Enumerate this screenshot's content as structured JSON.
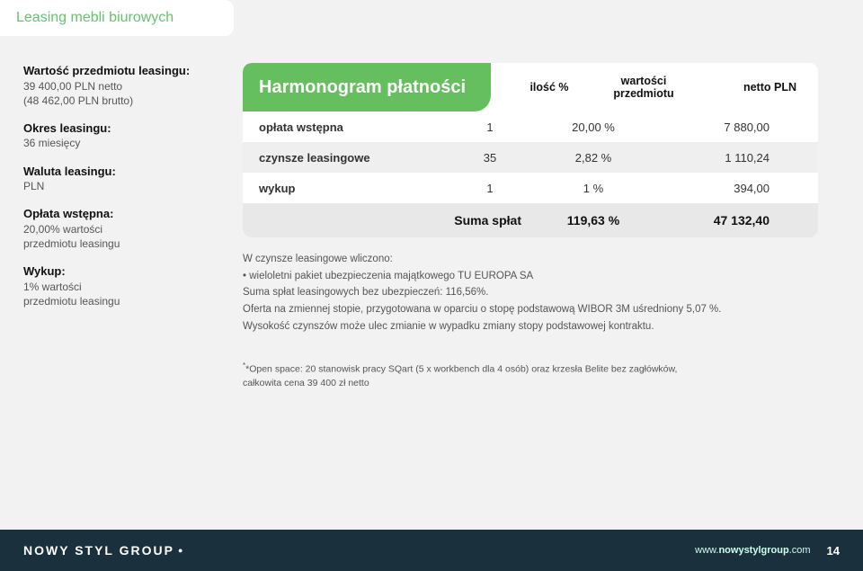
{
  "colors": {
    "page_bg": "#f2f2f2",
    "accent": "#66bf5e",
    "titlebar_text": "#66c36e",
    "footer_bg": "#1a303c",
    "row_alt": "#efefef",
    "sum_bg": "#e8e8e8",
    "text_primary": "#111111",
    "text_body": "#333333",
    "text_muted": "#555555"
  },
  "typography": {
    "title_fontsize": 16,
    "table_header_fontsize": 20,
    "column_header_fontsize": 12.5,
    "row_fontsize": 13,
    "sumrow_fontsize": 14,
    "sidebar_header_fontsize": 13,
    "sidebar_body_fontsize": 12,
    "notes_fontsize": 11.5,
    "footnote_fontsize": 10.5,
    "footer_fontsize": 12
  },
  "titlebar": {
    "text": "Leasing mebli biurowych"
  },
  "sidebar": {
    "wartosc": {
      "hdr": "Wartość przedmiotu leasingu:",
      "line1": "39 400,00 PLN netto",
      "line2": "(48 462,00 PLN brutto)"
    },
    "okres": {
      "hdr": "Okres leasingu:",
      "val": "36 miesięcy"
    },
    "waluta": {
      "hdr": "Waluta leasingu:",
      "val": "PLN"
    },
    "oplata": {
      "hdr": "Opłata wstępna:",
      "line1": "20,00% wartości",
      "line2": "przedmiotu leasingu"
    },
    "wykup": {
      "hdr": "Wykup:",
      "line1": "1% wartości",
      "line2": "przedmiotu leasingu"
    }
  },
  "table": {
    "header": "Harmonogram płatności",
    "columns": {
      "c1": "ilość %",
      "c2": "wartości przedmiotu",
      "c3": "netto PLN"
    },
    "rows": [
      {
        "lbl": "opłata wstępna",
        "c1": "1",
        "c2": "20,00 %",
        "c3": "7 880,00"
      },
      {
        "lbl": "czynsze leasingowe",
        "c1": "35",
        "c2": "2,82 %",
        "c3": "1 110,24"
      },
      {
        "lbl": "wykup",
        "c1": "1",
        "c2": "1 %",
        "c3": "394,00"
      }
    ],
    "sum": {
      "lbl": "Suma spłat",
      "c2": "119,63 %",
      "c3": "47 132,40"
    }
  },
  "notes": {
    "l1": "W czynsze leasingowe wliczono:",
    "l2": "• wieloletni pakiet ubezpieczenia majątkowego TU EUROPA SA",
    "l3": "Suma spłat leasingowych bez ubezpieczeń: 116,56%.",
    "l4": "Oferta na zmiennej stopie, przygotowana w oparciu o stopę podstawową WIBOR 3M uśredniony 5,07 %.",
    "l5": "Wysokość czynszów może ulec zmianie w wypadku zmiany stopy podstawowej kontraktu."
  },
  "footnote": {
    "l1": "*Open space: 20 stanowisk pracy SQart (5 x workbench dla 4 osób) oraz krzesła Belite bez zagłówków,",
    "l2": "całkowita cena 39 400 zł netto"
  },
  "footer": {
    "brand": "NOWY STYL GROUP",
    "url_prefix": "www.",
    "url_bold": "nowystylgroup",
    "url_suffix": ".com",
    "page": "14"
  }
}
